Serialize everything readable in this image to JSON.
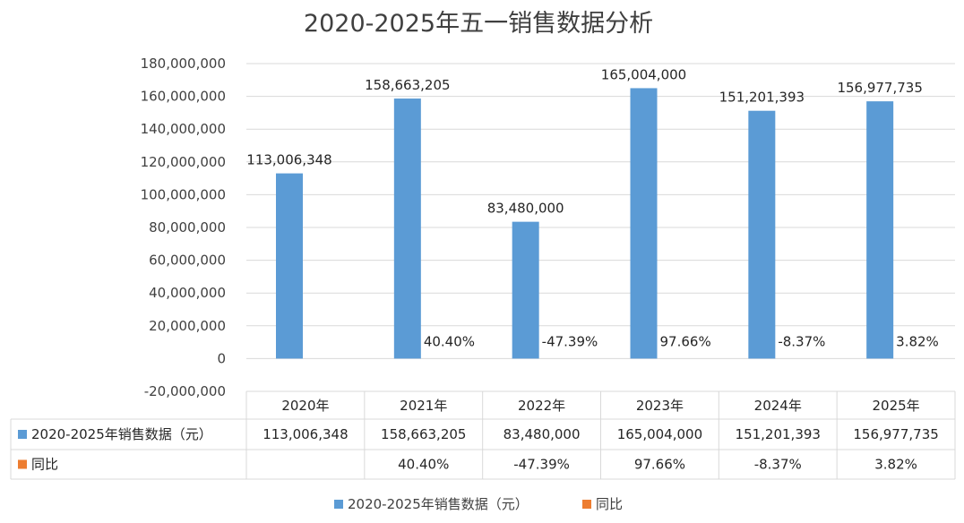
{
  "chart_data": {
    "type": "bar",
    "title": "2020-2025年五一销售数据分析",
    "categories": [
      "2020年",
      "2021年",
      "2022年",
      "2023年",
      "2024年",
      "2025年"
    ],
    "ylim": [
      -20000000,
      180000000
    ],
    "yticks": [
      "-20,000,000",
      "0",
      "20,000,000",
      "40,000,000",
      "60,000,000",
      "80,000,000",
      "100,000,000",
      "120,000,000",
      "140,000,000",
      "160,000,000",
      "180,000,000"
    ],
    "grid": true,
    "legend_position": "bottom",
    "series": [
      {
        "name": "2020-2025年销售数据（元）",
        "color": "#5B9BD5",
        "values": [
          113006348,
          158663205,
          83480000,
          165004000,
          151201393,
          156977735
        ],
        "labels": [
          "113,006,348",
          "158,663,205",
          "83,480,000",
          "165,004,000",
          "151,201,393",
          "156,977,735"
        ]
      },
      {
        "name": "同比",
        "color": "#ED7D31",
        "values": [
          null,
          0.404,
          -0.4739,
          0.9766,
          -0.0837,
          0.0382
        ],
        "labels": [
          "",
          "40.40%",
          "-47.39%",
          "97.66%",
          "-8.37%",
          "3.82%"
        ]
      }
    ]
  }
}
